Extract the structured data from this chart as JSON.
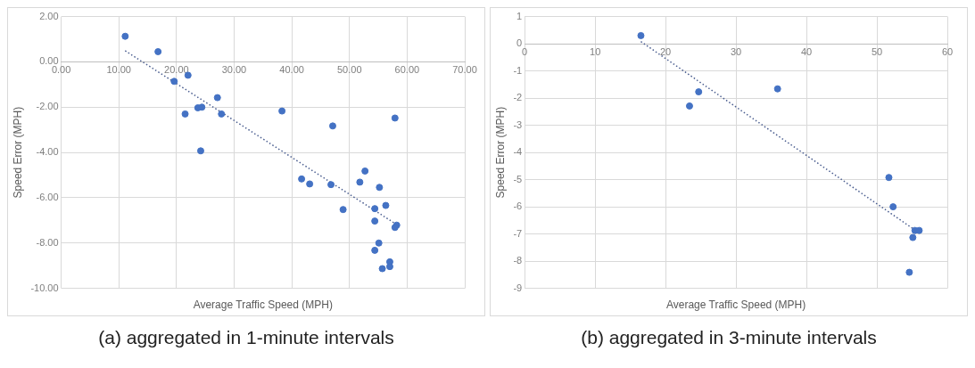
{
  "chart_data": [
    {
      "type": "scatter",
      "xlabel": "Average Traffic Speed (MPH)",
      "ylabel": "Speed Error (MPH)",
      "xlim": [
        0,
        70
      ],
      "ylim": [
        -10,
        2
      ],
      "grid": true,
      "marker": "circle",
      "xticks": [
        {
          "value": 0,
          "label": "0.00"
        },
        {
          "value": 10,
          "label": "10.00"
        },
        {
          "value": 20,
          "label": "20.00"
        },
        {
          "value": 30,
          "label": "30.00"
        },
        {
          "value": 40,
          "label": "40.00"
        },
        {
          "value": 50,
          "label": "50.00"
        },
        {
          "value": 60,
          "label": "60.00"
        },
        {
          "value": 70,
          "label": "70.00"
        }
      ],
      "yticks": [
        {
          "value": 2,
          "label": "2.00"
        },
        {
          "value": 0,
          "label": "0.00"
        },
        {
          "value": -2,
          "label": "-2.00"
        },
        {
          "value": -4,
          "label": "-4.00"
        },
        {
          "value": -6,
          "label": "-6.00"
        },
        {
          "value": -8,
          "label": "-8.00"
        },
        {
          "value": -10,
          "label": "-10.00"
        }
      ],
      "series": [
        {
          "type": "scatter",
          "color": "#4472c4",
          "x": [
            11.1,
            16.8,
            19.6,
            22.0,
            21.5,
            23.7,
            24.4,
            27.1,
            27.8,
            24.2,
            38.3,
            47.1,
            57.9,
            41.7,
            43.1,
            46.8,
            48.9,
            51.8,
            52.7,
            55.2,
            54.4,
            56.3,
            54.4,
            58.2,
            57.9,
            55.1,
            54.4,
            57.0,
            57.0,
            55.7
          ],
          "values": [
            1.13,
            0.45,
            -0.86,
            -0.59,
            -2.3,
            -2.03,
            -2.0,
            -1.58,
            -2.3,
            -3.93,
            -2.17,
            -2.83,
            -2.48,
            -5.17,
            -5.39,
            -5.42,
            -6.52,
            -5.31,
            -4.82,
            -5.54,
            -6.48,
            -6.34,
            -7.03,
            -7.21,
            -7.31,
            -8.0,
            -8.32,
            -8.83,
            -9.04,
            -9.13
          ]
        },
        {
          "type": "line",
          "color": "#4a5d8f",
          "line_style": "dotted",
          "marker": "none",
          "x": [
            11.1,
            58.0
          ],
          "values": [
            0.49,
            -7.15
          ]
        }
      ],
      "annotations": [
        "(a) aggregated in 1-minute intervals"
      ]
    },
    {
      "type": "scatter",
      "xlabel": "Average Traffic Speed (MPH)",
      "ylabel": "Speed Error (MPH)",
      "xlim": [
        0,
        60
      ],
      "ylim": [
        -9,
        1
      ],
      "grid": true,
      "marker": "circle",
      "xticks": [
        0,
        10,
        20,
        30,
        40,
        50,
        60
      ],
      "yticks": [
        1,
        0,
        -1,
        -2,
        -3,
        -4,
        -5,
        -6,
        -7,
        -8,
        -9
      ],
      "series": [
        {
          "type": "scatter",
          "color": "#4472c4",
          "x": [
            16.5,
            23.4,
            24.7,
            35.9,
            51.7,
            52.3,
            55.4,
            56.0,
            55.1,
            54.6
          ],
          "values": [
            0.3,
            -2.29,
            -1.77,
            -1.66,
            -4.92,
            -6.0,
            -6.87,
            -6.87,
            -7.13,
            -8.41
          ]
        },
        {
          "type": "line",
          "color": "#4a5d8f",
          "line_style": "dotted",
          "marker": "none",
          "x": [
            16.5,
            55.5
          ],
          "values": [
            0.08,
            -6.87
          ]
        }
      ],
      "annotations": [
        "(b) aggregated in 3-minute intervals"
      ]
    }
  ]
}
